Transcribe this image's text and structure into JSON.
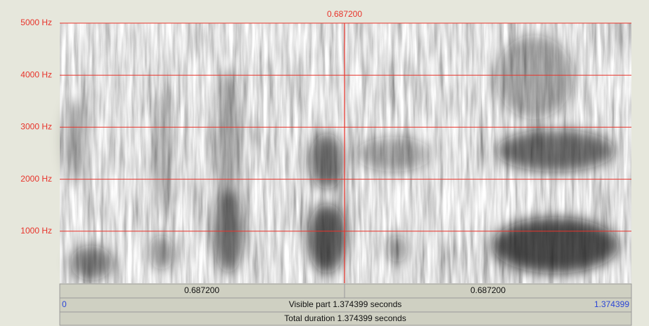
{
  "cursor": {
    "time_label": "0.687200"
  },
  "frequency_axis": {
    "ticks": [
      {
        "value": 5000,
        "label": "5000 Hz"
      },
      {
        "value": 4000,
        "label": "4000 Hz"
      },
      {
        "value": 3000,
        "label": "3000 Hz"
      },
      {
        "value": 2000,
        "label": "2000 Hz"
      },
      {
        "value": 1000,
        "label": "1000 Hz"
      }
    ]
  },
  "selection_bar": {
    "left": "0.687200",
    "right": "0.687200"
  },
  "visible_bar": {
    "start": "0",
    "text": "Visible part 1.374399 seconds",
    "end": "1.374399"
  },
  "total_bar": {
    "text": "Total duration 1.374399 seconds"
  }
}
